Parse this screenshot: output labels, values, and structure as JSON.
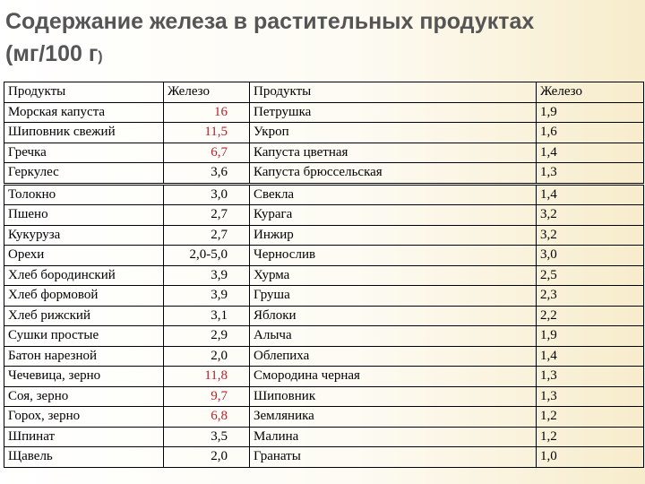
{
  "title_line1": "Содержание железа в растительных продуктах",
  "title_line2": "(мг/100 г",
  "title_paren": ")",
  "columns": [
    "Продукты",
    "Железо",
    "Продукты",
    "Железо"
  ],
  "rows": [
    {
      "p1": "Морская капуста",
      "v1": "16",
      "h1": true,
      "p2": "Петрушка",
      "v2": "1,9"
    },
    {
      "p1": "Шиповник свежий",
      "v1": "11,5",
      "h1": true,
      "p2": "Укроп",
      "v2": "1,6"
    },
    {
      "p1": "Гречка",
      "v1": "6,7",
      "h1": true,
      "p2": "Капуста цветная",
      "v2": "1,4"
    },
    {
      "p1": "Геркулес",
      "v1": "3,6",
      "h1": false,
      "p2": "Капуста брюссельская",
      "v2": "1,3"
    },
    {
      "p1": "Толокно",
      "v1": "3,0",
      "h1": false,
      "p2": "Свекла",
      "v2": "1,4"
    },
    {
      "p1": "Пшено",
      "v1": "2,7",
      "h1": false,
      "p2": "Курага",
      "v2": "3,2"
    },
    {
      "p1": "Кукуруза",
      "v1": "2,7",
      "h1": false,
      "p2": "Инжир",
      "v2": "3,2"
    },
    {
      "p1": "Орехи",
      "v1": "2,0-5,0",
      "h1": false,
      "p2": "Чернослив",
      "v2": "3,0"
    },
    {
      "p1": "Хлеб бородинский",
      "v1": "3,9",
      "h1": false,
      "p2": "Хурма",
      "v2": "2,5"
    },
    {
      "p1": "Хлеб формовой",
      "v1": "3,9",
      "h1": false,
      "p2": "Груша",
      "v2": "2,3"
    },
    {
      "p1": "Хлеб рижский",
      "v1": "3,1",
      "h1": false,
      "p2": "Яблоки",
      "v2": "2,2"
    },
    {
      "p1": "Сушки простые",
      "v1": "2,9",
      "h1": false,
      "p2": "Алыча",
      "v2": "1,9"
    },
    {
      "p1": "Батон нарезной",
      "v1": "2,0",
      "h1": false,
      "p2": "Облепиха",
      "v2": "1,4"
    },
    {
      "p1": "Чечевица, зерно",
      "v1": "11,8",
      "h1": true,
      "p2": "Смородина черная",
      "v2": "1,3"
    },
    {
      "p1": "Соя, зерно",
      "v1": "9,7",
      "h1": true,
      "p2": "Шиповник",
      "v2": "1,3"
    },
    {
      "p1": "Горох, зерно",
      "v1": "6,8",
      "h1": true,
      "p2": "Земляника",
      "v2": "1,2"
    },
    {
      "p1": "Шпинат",
      "v1": "3,5",
      "h1": false,
      "p2": "Малина",
      "v2": "1,2"
    },
    {
      "p1": "Щавель",
      "v1": "2,0",
      "h1": false,
      "p2": "Гранаты",
      "v2": "1,0"
    }
  ],
  "colors": {
    "highlight": "#b0242a",
    "title": "#555555"
  }
}
